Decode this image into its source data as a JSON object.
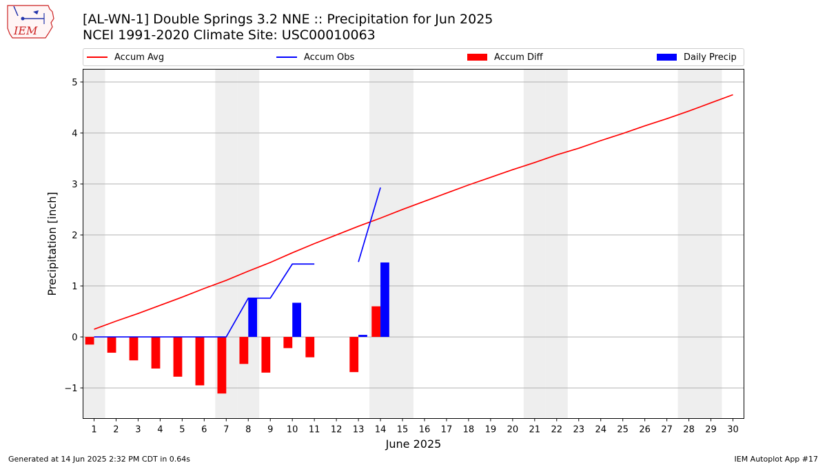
{
  "logo": {
    "text": "IEM"
  },
  "title_line1": "[AL-WN-1] Double Springs 3.2 NNE :: Precipitation for Jun 2025",
  "title_line2": "NCEI 1991-2020 Climate Site: USC00010063",
  "footer_left": "Generated at 14 Jun 2025 2:32 PM CDT in 0.64s",
  "footer_right": "IEM Autoplot App #17",
  "colors": {
    "avg": "#ff0000",
    "obs": "#0000ff",
    "diff": "#ff0000",
    "daily": "#0000ff",
    "weekend": "#eeeeee",
    "grid": "#b0b0b0"
  },
  "chart_data": {
    "type": "bar",
    "xlabel": "June 2025",
    "ylabel": "Precipitation [inch]",
    "xlim": [
      0.5,
      30.5
    ],
    "ylim": [
      -1.6,
      5.25
    ],
    "x_ticks": [
      1,
      2,
      3,
      4,
      5,
      6,
      7,
      8,
      9,
      10,
      11,
      12,
      13,
      14,
      15,
      16,
      17,
      18,
      19,
      20,
      21,
      22,
      23,
      24,
      25,
      26,
      27,
      28,
      29,
      30
    ],
    "y_ticks": [
      -1,
      0,
      1,
      2,
      3,
      4,
      5
    ],
    "grid": "horizontal",
    "legend_position": "top",
    "weekend_days": [
      1,
      7,
      8,
      14,
      15,
      21,
      22,
      28,
      29
    ],
    "series": [
      {
        "name": "Accum Avg",
        "kind": "line",
        "x": [
          1,
          2,
          3,
          4,
          5,
          6,
          7,
          8,
          9,
          10,
          11,
          12,
          13,
          14,
          15,
          16,
          17,
          18,
          19,
          20,
          21,
          22,
          23,
          24,
          25,
          26,
          27,
          28,
          29,
          30
        ],
        "values": [
          0.15,
          0.31,
          0.46,
          0.62,
          0.78,
          0.95,
          1.11,
          1.29,
          1.46,
          1.65,
          1.83,
          2.0,
          2.17,
          2.33,
          2.5,
          2.66,
          2.82,
          2.98,
          3.13,
          3.28,
          3.42,
          3.57,
          3.7,
          3.85,
          3.99,
          4.14,
          4.28,
          4.43,
          4.59,
          4.75
        ]
      },
      {
        "name": "Accum Obs",
        "kind": "line",
        "x": [
          1,
          2,
          3,
          4,
          5,
          6,
          7,
          8,
          9,
          10,
          11,
          12,
          13,
          14
        ],
        "values": [
          0,
          0,
          0,
          0,
          0,
          0,
          0,
          0.76,
          0.76,
          1.43,
          1.43,
          null,
          1.47,
          2.93
        ]
      },
      {
        "name": "Accum Diff",
        "kind": "bar",
        "x": [
          1,
          2,
          3,
          4,
          5,
          6,
          7,
          8,
          9,
          10,
          11,
          12,
          13,
          14
        ],
        "values": [
          -0.15,
          -0.31,
          -0.46,
          -0.62,
          -0.78,
          -0.95,
          -1.11,
          -0.53,
          -0.7,
          -0.22,
          -0.4,
          null,
          -0.69,
          0.6
        ]
      },
      {
        "name": "Daily Precip",
        "kind": "bar",
        "x": [
          1,
          2,
          3,
          4,
          5,
          6,
          7,
          8,
          9,
          10,
          11,
          12,
          13,
          14
        ],
        "values": [
          0,
          0,
          0,
          0,
          0,
          0,
          0,
          0.76,
          0,
          0.67,
          0,
          null,
          0.04,
          1.46
        ]
      }
    ]
  }
}
